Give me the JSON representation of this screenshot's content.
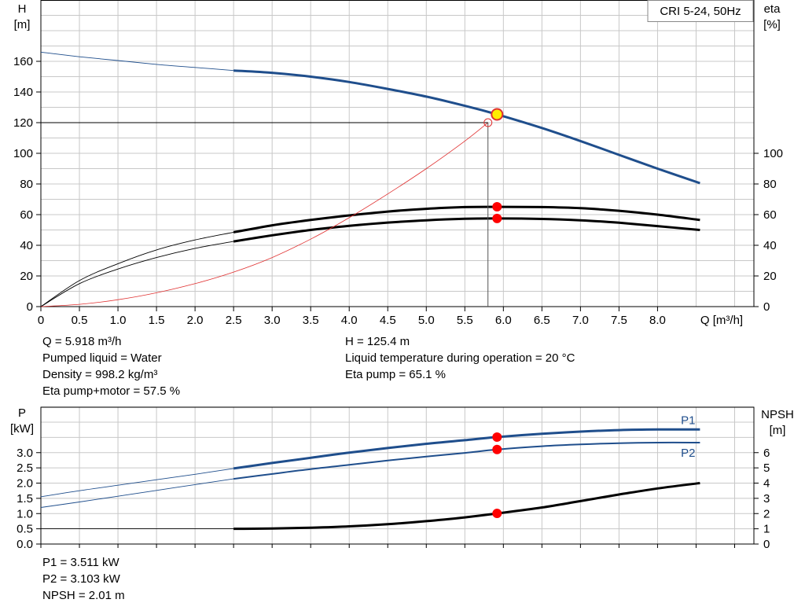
{
  "chart_data": [
    {
      "type": "line",
      "title": "CRI 5-24, 50Hz",
      "xlabel": "Q [m³/h]",
      "ylabel": "H\n[m]",
      "ylabel2": "eta\n[%]",
      "xlim": [
        0,
        9.25
      ],
      "ylim": [
        0,
        200
      ],
      "ylim2": [
        0,
        200
      ],
      "x_ticks": [
        "0",
        "0.5",
        "1.0",
        "1.5",
        "2.0",
        "2.5",
        "3.0",
        "3.5",
        "4.0",
        "4.5",
        "5.0",
        "5.5",
        "6.0",
        "6.5",
        "7.0",
        "7.5",
        "8.0"
      ],
      "y_ticks": [
        "0",
        "20",
        "40",
        "60",
        "80",
        "100",
        "120",
        "140",
        "160"
      ],
      "y2_ticks": [
        "0",
        "20",
        "40",
        "60",
        "80",
        "100"
      ],
      "grid": true,
      "series": [
        {
          "key": "H",
          "color": "#1f4e8c",
          "x": [
            0,
            0.5,
            1,
            1.5,
            2,
            2.5
          ],
          "y": [
            166,
            163,
            160.5,
            158,
            156,
            154
          ],
          "x_main": [
            2.5,
            3,
            3.5,
            4,
            4.5,
            5,
            5.5,
            5.918,
            6.5,
            7,
            7.5,
            8,
            8.55
          ],
          "y_main": [
            154,
            152.5,
            150,
            146.5,
            142,
            137,
            131,
            125.4,
            116.5,
            108,
            99,
            90,
            80.5
          ]
        },
        {
          "key": "eta_pump",
          "color": "#000000",
          "x": [
            0,
            0.5,
            1,
            1.5,
            2,
            2.5
          ],
          "y": [
            0,
            17,
            28,
            37,
            43.5,
            48.5
          ],
          "x_main": [
            2.5,
            3,
            3.5,
            4,
            4.5,
            5,
            5.5,
            5.918,
            6.5,
            7,
            7.5,
            8,
            8.55
          ],
          "y_main": [
            48.5,
            53,
            56.5,
            59.5,
            62,
            63.8,
            64.9,
            65.1,
            64.9,
            64.2,
            62.5,
            60,
            56.5
          ]
        },
        {
          "key": "eta_pump_motor",
          "color": "#000000",
          "x": [
            0,
            0.5,
            1,
            1.5,
            2,
            2.5
          ],
          "y": [
            0,
            15,
            24.5,
            32,
            38,
            42.5
          ],
          "x_main": [
            2.5,
            3,
            3.5,
            4,
            4.5,
            5,
            5.5,
            5.918,
            6.5,
            7,
            7.5,
            8,
            8.55
          ],
          "y_main": [
            42.5,
            46.5,
            50,
            52.7,
            54.8,
            56.3,
            57.3,
            57.5,
            57.2,
            56.3,
            54.7,
            52.5,
            50
          ]
        },
        {
          "key": "system_curve",
          "color": "#e03030",
          "x": [
            0,
            0.5,
            1,
            1.5,
            2,
            2.5,
            3,
            3.5,
            4,
            4.5,
            5,
            5.5,
            5.8
          ],
          "y": [
            0,
            1.5,
            4.5,
            9,
            15,
            22.5,
            32,
            44,
            58,
            73.5,
            90,
            108,
            120
          ]
        }
      ],
      "operating_point": {
        "x": 5.918,
        "y": 125.4
      },
      "system_point": {
        "x": 5.8,
        "y": 120
      },
      "eta_points": [
        {
          "x": 5.918,
          "y": 65.1
        },
        {
          "x": 5.918,
          "y": 57.5
        }
      ]
    },
    {
      "type": "line",
      "xlabel": "",
      "ylabel": "P\n[kW]",
      "ylabel2": "NPSH\n[m]",
      "xlim": [
        0,
        9.25
      ],
      "ylim": [
        0,
        4.5
      ],
      "ylim2": [
        0,
        9
      ],
      "y_ticks": [
        "0.0",
        "0.5",
        "1.0",
        "1.5",
        "2.0",
        "2.5",
        "3.0"
      ],
      "y2_ticks": [
        "0",
        "1",
        "2",
        "3",
        "4",
        "5",
        "6"
      ],
      "grid": true,
      "series": [
        {
          "key": "P1",
          "name": "P1",
          "color": "#1f4e8c",
          "x": [
            0,
            0.5,
            1,
            1.5,
            2,
            2.5
          ],
          "y": [
            1.55,
            1.75,
            1.93,
            2.11,
            2.29,
            2.48
          ],
          "x_main": [
            2.5,
            3,
            3.5,
            4,
            4.5,
            5,
            5.5,
            5.918,
            6.5,
            7,
            7.5,
            8,
            8.55
          ],
          "y_main": [
            2.48,
            2.66,
            2.83,
            3.0,
            3.15,
            3.29,
            3.41,
            3.511,
            3.62,
            3.69,
            3.74,
            3.76,
            3.76
          ]
        },
        {
          "key": "P2",
          "name": "P2",
          "color": "#1f4e8c",
          "x": [
            0,
            0.5,
            1,
            1.5,
            2,
            2.5
          ],
          "y": [
            1.2,
            1.38,
            1.57,
            1.76,
            1.95,
            2.14
          ],
          "x_main": [
            2.5,
            3,
            3.5,
            4,
            4.5,
            5,
            5.5,
            5.918,
            6.5,
            7,
            7.5,
            8,
            8.55
          ],
          "y_main": [
            2.14,
            2.3,
            2.46,
            2.6,
            2.74,
            2.87,
            2.99,
            3.103,
            3.21,
            3.27,
            3.31,
            3.33,
            3.33
          ]
        },
        {
          "key": "NPSH",
          "color": "#000000",
          "x": [
            0,
            0.5,
            1,
            1.5,
            2,
            2.5
          ],
          "y": [
            1.0,
            1.0,
            1.0,
            1.0,
            1.0,
            1.0
          ],
          "x_main": [
            2.5,
            3,
            3.5,
            4,
            4.5,
            5,
            5.5,
            5.918,
            6.5,
            7,
            7.5,
            8,
            8.55
          ],
          "y_main": [
            1.0,
            1.02,
            1.07,
            1.16,
            1.3,
            1.5,
            1.75,
            2.01,
            2.4,
            2.82,
            3.25,
            3.65,
            4.0
          ]
        }
      ],
      "points": [
        {
          "series": "P1",
          "x": 5.918,
          "y": 3.511
        },
        {
          "series": "P2",
          "x": 5.918,
          "y": 3.103
        },
        {
          "series": "NPSH",
          "x": 5.918,
          "y": 2.01
        }
      ]
    }
  ],
  "info": {
    "q": "Q = 5.918 m³/h",
    "liquid": "Pumped liquid = Water",
    "density": "Density = 998.2 kg/m³",
    "eta_pm": "Eta pump+motor = 57.5 %",
    "h": "H = 125.4 m",
    "temp": "Liquid temperature during operation = 20 °C",
    "eta_pump": "Eta pump = 65.1 %"
  },
  "power_info": {
    "p1": "P1 = 3.511 kW",
    "p2": "P2 = 3.103 kW",
    "npsh": "NPSH = 2.01 m"
  }
}
